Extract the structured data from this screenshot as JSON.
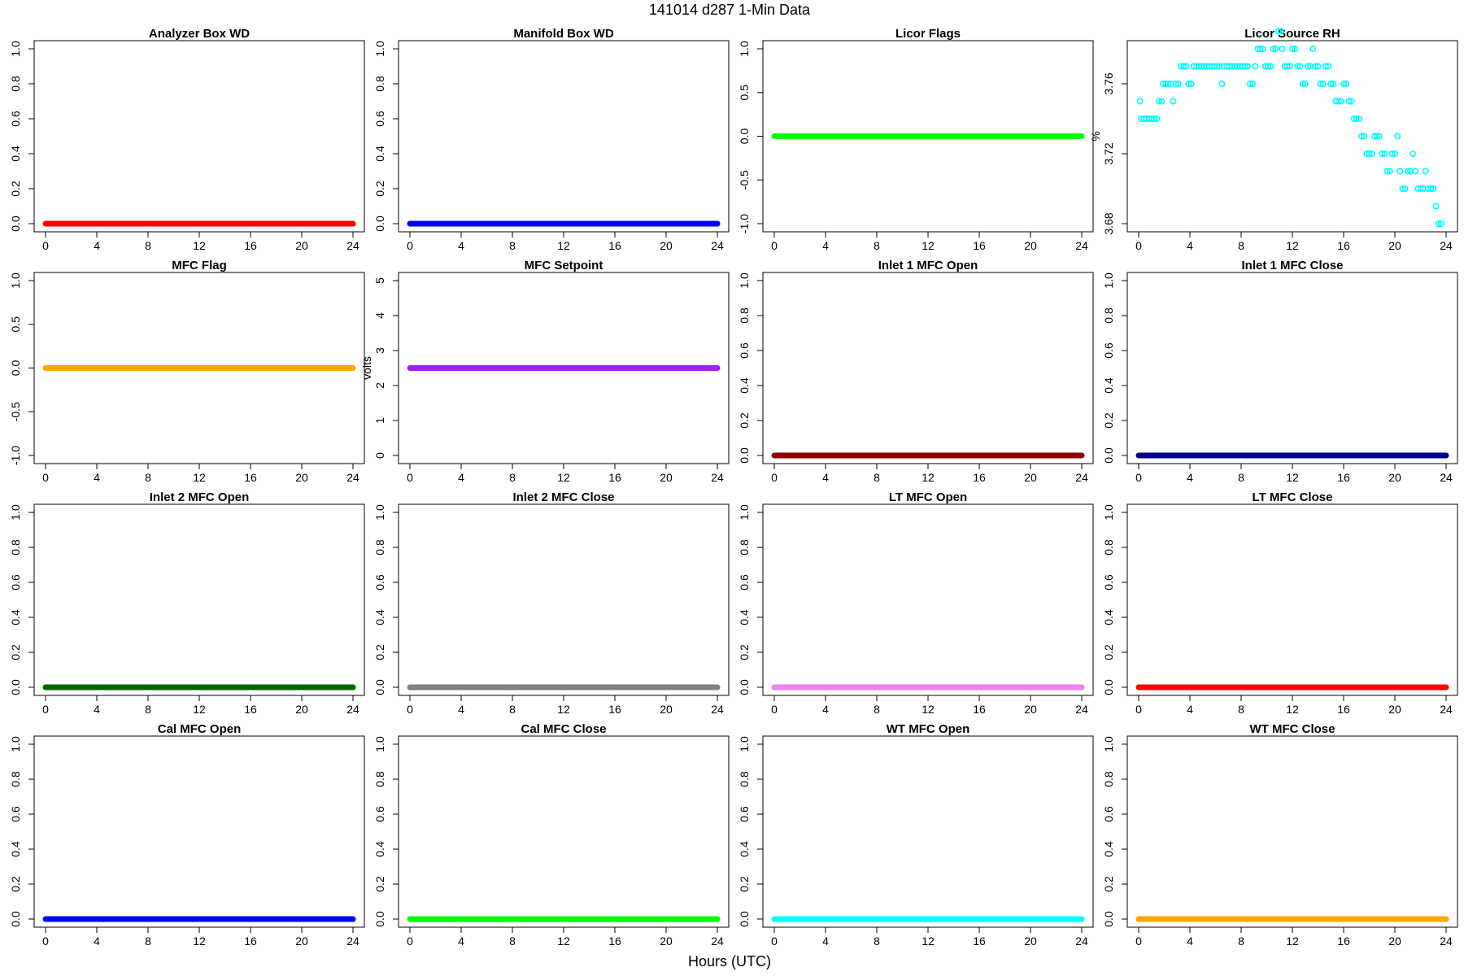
{
  "figure": {
    "title": "141014   d287   1-Min Data",
    "xlabel": "Hours (UTC)"
  },
  "chart_data": [
    {
      "type": "scatter",
      "title": "Analyzer Box WD",
      "ylabel": "",
      "color": "#ff0000",
      "xlim": [
        0,
        24
      ],
      "xticks": [
        0,
        4,
        8,
        12,
        16,
        20,
        24
      ],
      "ylim": [
        0,
        1
      ],
      "yticks": [
        0,
        0.2,
        0.4,
        0.6,
        0.8,
        1
      ],
      "ytick_labels": [
        "0.0",
        "0.2",
        "0.4",
        "0.6",
        "0.8",
        "1.0"
      ],
      "points": [
        [
          0,
          0
        ],
        [
          24,
          0
        ]
      ],
      "constant": true
    },
    {
      "type": "scatter",
      "title": "Manifold Box WD",
      "ylabel": "",
      "color": "#0000ff",
      "xlim": [
        0,
        24
      ],
      "xticks": [
        0,
        4,
        8,
        12,
        16,
        20,
        24
      ],
      "ylim": [
        0,
        1
      ],
      "yticks": [
        0,
        0.2,
        0.4,
        0.6,
        0.8,
        1
      ],
      "ytick_labels": [
        "0.0",
        "0.2",
        "0.4",
        "0.6",
        "0.8",
        "1.0"
      ],
      "points": [
        [
          0,
          0
        ],
        [
          24,
          0
        ]
      ],
      "constant": true
    },
    {
      "type": "scatter",
      "title": "Licor Flags",
      "ylabel": "",
      "color": "#00ff00",
      "xlim": [
        0,
        24
      ],
      "xticks": [
        0,
        4,
        8,
        12,
        16,
        20,
        24
      ],
      "ylim": [
        -1,
        1
      ],
      "yticks": [
        -1,
        -0.5,
        0,
        0.5,
        1
      ],
      "ytick_labels": [
        "-1.0",
        "-0.5",
        "0.0",
        "0.5",
        "1.0"
      ],
      "points": [
        [
          0,
          0
        ],
        [
          24,
          0
        ]
      ],
      "constant": true
    },
    {
      "type": "scatter",
      "title": "Licor Source RH",
      "ylabel": "%",
      "color": "#00ffff",
      "xlim": [
        0,
        24
      ],
      "xticks": [
        0,
        4,
        8,
        12,
        16,
        20,
        24
      ],
      "ylim": [
        3.68,
        3.78
      ],
      "yticks": [
        3.68,
        3.72,
        3.76
      ],
      "ytick_labels": [
        "3.68",
        "3.72",
        "3.76"
      ],
      "constant": false,
      "points": [
        [
          0.1,
          3.75
        ],
        [
          0.2,
          3.74
        ],
        [
          0.4,
          3.74
        ],
        [
          0.6,
          3.74
        ],
        [
          0.8,
          3.74
        ],
        [
          1.0,
          3.74
        ],
        [
          1.2,
          3.74
        ],
        [
          1.4,
          3.74
        ],
        [
          1.6,
          3.75
        ],
        [
          1.8,
          3.75
        ],
        [
          1.9,
          3.76
        ],
        [
          2.1,
          3.76
        ],
        [
          2.3,
          3.76
        ],
        [
          2.5,
          3.76
        ],
        [
          2.7,
          3.75
        ],
        [
          2.9,
          3.76
        ],
        [
          3.1,
          3.76
        ],
        [
          3.3,
          3.77
        ],
        [
          3.5,
          3.77
        ],
        [
          3.7,
          3.77
        ],
        [
          3.9,
          3.76
        ],
        [
          4.1,
          3.76
        ],
        [
          4.3,
          3.77
        ],
        [
          4.5,
          3.77
        ],
        [
          4.7,
          3.77
        ],
        [
          4.9,
          3.77
        ],
        [
          5.1,
          3.77
        ],
        [
          5.3,
          3.77
        ],
        [
          5.5,
          3.77
        ],
        [
          5.7,
          3.77
        ],
        [
          5.9,
          3.77
        ],
        [
          6.1,
          3.77
        ],
        [
          6.3,
          3.77
        ],
        [
          6.5,
          3.76
        ],
        [
          6.7,
          3.77
        ],
        [
          6.9,
          3.77
        ],
        [
          7.1,
          3.77
        ],
        [
          7.3,
          3.77
        ],
        [
          7.5,
          3.77
        ],
        [
          7.7,
          3.77
        ],
        [
          7.9,
          3.77
        ],
        [
          8.1,
          3.77
        ],
        [
          8.3,
          3.77
        ],
        [
          8.5,
          3.77
        ],
        [
          8.7,
          3.76
        ],
        [
          8.9,
          3.76
        ],
        [
          9.1,
          3.77
        ],
        [
          9.3,
          3.78
        ],
        [
          9.5,
          3.78
        ],
        [
          9.7,
          3.78
        ],
        [
          9.9,
          3.77
        ],
        [
          10.1,
          3.77
        ],
        [
          10.3,
          3.77
        ],
        [
          10.5,
          3.78
        ],
        [
          10.7,
          3.78
        ],
        [
          10.9,
          3.79
        ],
        [
          11.1,
          3.79
        ],
        [
          11.2,
          3.78
        ],
        [
          11.4,
          3.77
        ],
        [
          11.6,
          3.77
        ],
        [
          11.8,
          3.77
        ],
        [
          12.0,
          3.78
        ],
        [
          12.2,
          3.78
        ],
        [
          12.4,
          3.77
        ],
        [
          12.6,
          3.77
        ],
        [
          12.8,
          3.76
        ],
        [
          13.0,
          3.76
        ],
        [
          13.2,
          3.77
        ],
        [
          13.4,
          3.77
        ],
        [
          13.6,
          3.78
        ],
        [
          13.8,
          3.77
        ],
        [
          14.0,
          3.77
        ],
        [
          14.2,
          3.76
        ],
        [
          14.4,
          3.76
        ],
        [
          14.6,
          3.77
        ],
        [
          14.8,
          3.77
        ],
        [
          15.0,
          3.76
        ],
        [
          15.2,
          3.76
        ],
        [
          15.4,
          3.75
        ],
        [
          15.6,
          3.75
        ],
        [
          15.8,
          3.75
        ],
        [
          16.0,
          3.76
        ],
        [
          16.2,
          3.76
        ],
        [
          16.4,
          3.75
        ],
        [
          16.6,
          3.75
        ],
        [
          16.8,
          3.74
        ],
        [
          17.0,
          3.74
        ],
        [
          17.2,
          3.74
        ],
        [
          17.4,
          3.73
        ],
        [
          17.6,
          3.73
        ],
        [
          17.8,
          3.72
        ],
        [
          18.0,
          3.72
        ],
        [
          18.2,
          3.72
        ],
        [
          18.4,
          3.73
        ],
        [
          18.6,
          3.73
        ],
        [
          18.8,
          3.73
        ],
        [
          19.0,
          3.72
        ],
        [
          19.2,
          3.72
        ],
        [
          19.4,
          3.71
        ],
        [
          19.6,
          3.71
        ],
        [
          19.8,
          3.72
        ],
        [
          20.0,
          3.72
        ],
        [
          20.2,
          3.73
        ],
        [
          20.4,
          3.71
        ],
        [
          20.6,
          3.7
        ],
        [
          20.8,
          3.7
        ],
        [
          21.0,
          3.71
        ],
        [
          21.2,
          3.71
        ],
        [
          21.4,
          3.72
        ],
        [
          21.6,
          3.71
        ],
        [
          21.8,
          3.7
        ],
        [
          22.0,
          3.7
        ],
        [
          22.2,
          3.7
        ],
        [
          22.4,
          3.71
        ],
        [
          22.6,
          3.7
        ],
        [
          22.8,
          3.7
        ],
        [
          23.0,
          3.7
        ],
        [
          23.2,
          3.69
        ],
        [
          23.4,
          3.68
        ],
        [
          23.6,
          3.68
        ]
      ]
    },
    {
      "type": "scatter",
      "title": "MFC Flag",
      "ylabel": "",
      "color": "#ffa500",
      "xlim": [
        0,
        24
      ],
      "xticks": [
        0,
        4,
        8,
        12,
        16,
        20,
        24
      ],
      "ylim": [
        -1,
        1
      ],
      "yticks": [
        -1,
        -0.5,
        0,
        0.5,
        1
      ],
      "ytick_labels": [
        "-1.0",
        "-0.5",
        "0.0",
        "0.5",
        "1.0"
      ],
      "points": [
        [
          0,
          0
        ],
        [
          24,
          0
        ]
      ],
      "constant": true
    },
    {
      "type": "scatter",
      "title": "MFC Setpoint",
      "ylabel": "volts",
      "color": "#a020f0",
      "xlim": [
        0,
        24
      ],
      "xticks": [
        0,
        4,
        8,
        12,
        16,
        20,
        24
      ],
      "ylim": [
        0,
        5
      ],
      "yticks": [
        0,
        1,
        2,
        3,
        4,
        5
      ],
      "ytick_labels": [
        "0",
        "1",
        "2",
        "3",
        "4",
        "5"
      ],
      "points": [
        [
          0,
          2.5
        ],
        [
          24,
          2.5
        ]
      ],
      "constant": true
    },
    {
      "type": "scatter",
      "title": "Inlet 1 MFC Open",
      "ylabel": "",
      "color": "#8b0000",
      "xlim": [
        0,
        24
      ],
      "xticks": [
        0,
        4,
        8,
        12,
        16,
        20,
        24
      ],
      "ylim": [
        0,
        1
      ],
      "yticks": [
        0,
        0.2,
        0.4,
        0.6,
        0.8,
        1
      ],
      "ytick_labels": [
        "0.0",
        "0.2",
        "0.4",
        "0.6",
        "0.8",
        "1.0"
      ],
      "points": [
        [
          0,
          0
        ],
        [
          24,
          0
        ]
      ],
      "constant": true
    },
    {
      "type": "scatter",
      "title": "Inlet 1 MFC Close",
      "ylabel": "",
      "color": "#00008b",
      "xlim": [
        0,
        24
      ],
      "xticks": [
        0,
        4,
        8,
        12,
        16,
        20,
        24
      ],
      "ylim": [
        0,
        1
      ],
      "yticks": [
        0,
        0.2,
        0.4,
        0.6,
        0.8,
        1
      ],
      "ytick_labels": [
        "0.0",
        "0.2",
        "0.4",
        "0.6",
        "0.8",
        "1.0"
      ],
      "points": [
        [
          0,
          0
        ],
        [
          24,
          0
        ]
      ],
      "constant": true
    },
    {
      "type": "scatter",
      "title": "Inlet 2 MFC Open",
      "ylabel": "",
      "color": "#006400",
      "xlim": [
        0,
        24
      ],
      "xticks": [
        0,
        4,
        8,
        12,
        16,
        20,
        24
      ],
      "ylim": [
        0,
        1
      ],
      "yticks": [
        0,
        0.2,
        0.4,
        0.6,
        0.8,
        1
      ],
      "ytick_labels": [
        "0.0",
        "0.2",
        "0.4",
        "0.6",
        "0.8",
        "1.0"
      ],
      "points": [
        [
          0,
          0
        ],
        [
          24,
          0
        ]
      ],
      "constant": true
    },
    {
      "type": "scatter",
      "title": "Inlet 2 MFC Close",
      "ylabel": "",
      "color": "#808080",
      "xlim": [
        0,
        24
      ],
      "xticks": [
        0,
        4,
        8,
        12,
        16,
        20,
        24
      ],
      "ylim": [
        0,
        1
      ],
      "yticks": [
        0,
        0.2,
        0.4,
        0.6,
        0.8,
        1
      ],
      "ytick_labels": [
        "0.0",
        "0.2",
        "0.4",
        "0.6",
        "0.8",
        "1.0"
      ],
      "points": [
        [
          0,
          0
        ],
        [
          24,
          0
        ]
      ],
      "constant": true
    },
    {
      "type": "scatter",
      "title": "LT MFC Open",
      "ylabel": "",
      "color": "#ee82ee",
      "xlim": [
        0,
        24
      ],
      "xticks": [
        0,
        4,
        8,
        12,
        16,
        20,
        24
      ],
      "ylim": [
        0,
        1
      ],
      "yticks": [
        0,
        0.2,
        0.4,
        0.6,
        0.8,
        1
      ],
      "ytick_labels": [
        "0.0",
        "0.2",
        "0.4",
        "0.6",
        "0.8",
        "1.0"
      ],
      "points": [
        [
          0,
          0
        ],
        [
          24,
          0
        ]
      ],
      "constant": true
    },
    {
      "type": "scatter",
      "title": "LT MFC Close",
      "ylabel": "",
      "color": "#ff0000",
      "xlim": [
        0,
        24
      ],
      "xticks": [
        0,
        4,
        8,
        12,
        16,
        20,
        24
      ],
      "ylim": [
        0,
        1
      ],
      "yticks": [
        0,
        0.2,
        0.4,
        0.6,
        0.8,
        1
      ],
      "ytick_labels": [
        "0.0",
        "0.2",
        "0.4",
        "0.6",
        "0.8",
        "1.0"
      ],
      "points": [
        [
          0,
          0
        ],
        [
          24,
          0
        ]
      ],
      "constant": true
    },
    {
      "type": "scatter",
      "title": "Cal MFC Open",
      "ylabel": "",
      "color": "#0000ff",
      "xlim": [
        0,
        24
      ],
      "xticks": [
        0,
        4,
        8,
        12,
        16,
        20,
        24
      ],
      "ylim": [
        0,
        1
      ],
      "yticks": [
        0,
        0.2,
        0.4,
        0.6,
        0.8,
        1
      ],
      "ytick_labels": [
        "0.0",
        "0.2",
        "0.4",
        "0.6",
        "0.8",
        "1.0"
      ],
      "points": [
        [
          0,
          0
        ],
        [
          24,
          0
        ]
      ],
      "constant": true
    },
    {
      "type": "scatter",
      "title": "Cal MFC Close",
      "ylabel": "",
      "color": "#00ff00",
      "xlim": [
        0,
        24
      ],
      "xticks": [
        0,
        4,
        8,
        12,
        16,
        20,
        24
      ],
      "ylim": [
        0,
        1
      ],
      "yticks": [
        0,
        0.2,
        0.4,
        0.6,
        0.8,
        1
      ],
      "ytick_labels": [
        "0.0",
        "0.2",
        "0.4",
        "0.6",
        "0.8",
        "1.0"
      ],
      "points": [
        [
          0,
          0
        ],
        [
          24,
          0
        ]
      ],
      "constant": true
    },
    {
      "type": "scatter",
      "title": "WT MFC Open",
      "ylabel": "",
      "color": "#00ffff",
      "xlim": [
        0,
        24
      ],
      "xticks": [
        0,
        4,
        8,
        12,
        16,
        20,
        24
      ],
      "ylim": [
        0,
        1
      ],
      "yticks": [
        0,
        0.2,
        0.4,
        0.6,
        0.8,
        1
      ],
      "ytick_labels": [
        "0.0",
        "0.2",
        "0.4",
        "0.6",
        "0.8",
        "1.0"
      ],
      "points": [
        [
          0,
          0
        ],
        [
          24,
          0
        ]
      ],
      "constant": true
    },
    {
      "type": "scatter",
      "title": "WT MFC Close",
      "ylabel": "",
      "color": "#ffa500",
      "xlim": [
        0,
        24
      ],
      "xticks": [
        0,
        4,
        8,
        12,
        16,
        20,
        24
      ],
      "ylim": [
        0,
        1
      ],
      "yticks": [
        0,
        0.2,
        0.4,
        0.6,
        0.8,
        1
      ],
      "ytick_labels": [
        "0.0",
        "0.2",
        "0.4",
        "0.6",
        "0.8",
        "1.0"
      ],
      "points": [
        [
          0,
          0
        ],
        [
          24,
          0
        ]
      ],
      "constant": true
    }
  ]
}
